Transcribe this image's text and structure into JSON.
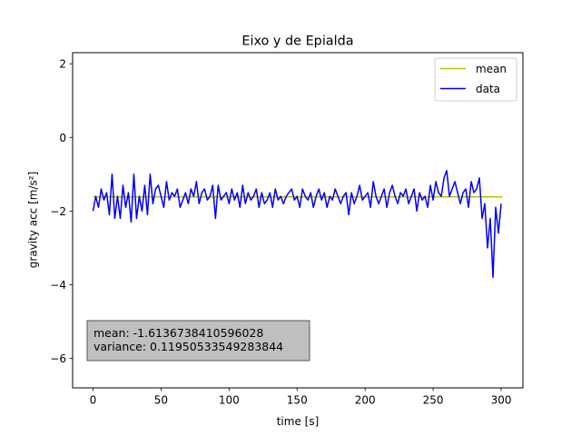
{
  "chart_data": {
    "type": "line",
    "title": "Eixo y de Epialda",
    "xlabel": "time [s]",
    "ylabel": "gravity acc [m/s²]",
    "xlim": [
      -15,
      316
    ],
    "ylim": [
      -6.8,
      2.3
    ],
    "xticks": [
      0,
      50,
      100,
      150,
      200,
      250,
      300
    ],
    "xtick_labels": [
      "0",
      "50",
      "100",
      "150",
      "200",
      "250",
      "300"
    ],
    "yticks": [
      2,
      0,
      -2,
      -4,
      -6
    ],
    "ytick_labels": [
      "2",
      "0",
      "−2",
      "−4",
      "−6"
    ],
    "grid": false,
    "legend": {
      "placement": "upper right",
      "entries": [
        "mean",
        "data"
      ]
    },
    "series": [
      {
        "name": "mean",
        "color": "#bfbf00",
        "x": [
          0,
          301
        ],
        "y": [
          -1.6136738410596028,
          -1.6136738410596028
        ]
      },
      {
        "name": "data",
        "color": "#0000ff",
        "x": [
          0,
          2,
          4,
          6,
          8,
          10,
          12,
          14,
          16,
          18,
          20,
          22,
          24,
          26,
          28,
          30,
          32,
          34,
          36,
          38,
          40,
          42,
          44,
          46,
          48,
          50,
          52,
          54,
          56,
          58,
          60,
          62,
          64,
          66,
          68,
          70,
          72,
          74,
          76,
          78,
          80,
          82,
          84,
          86,
          88,
          90,
          92,
          94,
          96,
          98,
          100,
          102,
          104,
          106,
          108,
          110,
          112,
          114,
          116,
          118,
          120,
          122,
          124,
          126,
          128,
          130,
          132,
          134,
          136,
          138,
          140,
          142,
          144,
          146,
          148,
          150,
          152,
          154,
          156,
          158,
          160,
          162,
          164,
          166,
          168,
          170,
          172,
          174,
          176,
          178,
          180,
          182,
          184,
          186,
          188,
          190,
          192,
          194,
          196,
          198,
          200,
          202,
          204,
          206,
          208,
          210,
          212,
          214,
          216,
          218,
          220,
          222,
          224,
          226,
          228,
          230,
          232,
          234,
          236,
          238,
          240,
          242,
          244,
          246,
          248,
          250,
          252,
          254,
          256,
          258,
          260,
          262,
          264,
          266,
          268,
          270,
          272,
          274,
          276,
          278,
          280,
          282,
          284,
          286,
          288,
          290,
          292,
          294,
          296,
          298,
          300
        ],
        "y": [
          -2.0,
          -1.6,
          -1.9,
          -1.4,
          -1.7,
          -1.5,
          -2.1,
          -1.0,
          -2.2,
          -1.6,
          -2.2,
          -1.3,
          -1.9,
          -1.5,
          -2.3,
          -1.0,
          -2.2,
          -1.6,
          -2.0,
          -1.3,
          -2.1,
          -1.0,
          -1.8,
          -1.4,
          -1.3,
          -1.6,
          -1.9,
          -1.2,
          -1.7,
          -1.5,
          -1.6,
          -1.4,
          -1.9,
          -1.7,
          -1.5,
          -1.8,
          -1.4,
          -1.6,
          -1.2,
          -1.8,
          -1.5,
          -1.4,
          -1.7,
          -1.6,
          -1.3,
          -2.2,
          -1.3,
          -1.7,
          -1.6,
          -1.5,
          -1.8,
          -1.4,
          -1.7,
          -1.5,
          -1.9,
          -1.3,
          -1.8,
          -1.5,
          -1.7,
          -1.6,
          -1.4,
          -1.9,
          -1.5,
          -1.8,
          -1.7,
          -1.5,
          -1.9,
          -1.4,
          -1.7,
          -1.6,
          -1.8,
          -1.6,
          -1.5,
          -1.4,
          -1.7,
          -1.6,
          -1.9,
          -1.4,
          -1.6,
          -1.7,
          -1.5,
          -1.9,
          -1.6,
          -1.4,
          -1.7,
          -1.5,
          -1.9,
          -1.6,
          -1.7,
          -1.4,
          -1.6,
          -1.8,
          -1.6,
          -1.5,
          -2.1,
          -1.5,
          -1.8,
          -1.6,
          -1.3,
          -1.7,
          -1.6,
          -1.5,
          -1.9,
          -1.2,
          -1.6,
          -1.8,
          -1.6,
          -1.4,
          -1.9,
          -1.5,
          -1.3,
          -1.6,
          -1.8,
          -1.5,
          -1.6,
          -1.4,
          -1.8,
          -1.6,
          -1.4,
          -2.0,
          -1.5,
          -1.7,
          -1.6,
          -1.9,
          -1.3,
          -1.7,
          -1.2,
          -1.5,
          -1.6,
          -1.1,
          -0.9,
          -1.6,
          -1.4,
          -1.2,
          -1.5,
          -1.8,
          -1.5,
          -1.4,
          -1.9,
          -1.2,
          -1.5,
          -1.4,
          -1.1,
          -2.2,
          -1.8,
          -3.0,
          -2.2,
          -3.8,
          -1.9,
          -2.6,
          -1.8
        ],
        "extra_points_note": ""
      }
    ],
    "stats_box": {
      "mean_label": "mean: -1.6136738410596028",
      "variance_label": "variance: 0.11950533549283844"
    }
  }
}
